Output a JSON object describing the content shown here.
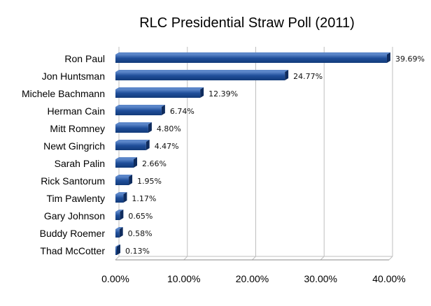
{
  "chart_data": {
    "type": "bar",
    "orientation": "horizontal",
    "title": "RLC Presidential Straw Poll (2011)",
    "categories": [
      "Ron Paul",
      "Jon Huntsman",
      "Michele Bachmann",
      "Herman Cain",
      "Mitt Romney",
      "Newt Gingrich",
      "Sarah Palin",
      "Rick Santorum",
      "Tim Pawlenty",
      "Gary Johnson",
      "Buddy Roemer",
      "Thad McCotter"
    ],
    "values": [
      39.69,
      24.77,
      12.39,
      6.74,
      4.8,
      4.47,
      2.66,
      1.95,
      1.17,
      0.65,
      0.58,
      0.13
    ],
    "data_labels": [
      "39.69%",
      "24.77%",
      "12.39%",
      "6.74%",
      "4.80%",
      "4.47%",
      "2.66%",
      "1.95%",
      "1.17%",
      "0.65%",
      "0.58%",
      "0.13%"
    ],
    "xlim": [
      0,
      40
    ],
    "xticks": [
      0,
      10,
      20,
      30,
      40
    ],
    "xtick_labels": [
      "0.00%",
      "10.00%",
      "20.00%",
      "30.00%",
      "40.00%"
    ],
    "xlabel": "",
    "ylabel": "",
    "grid": true,
    "legend": "none",
    "bar_color": "#1f4e9a",
    "bar_highlight": "#5b86c9",
    "bar_shadow": "#0f2c5e"
  }
}
